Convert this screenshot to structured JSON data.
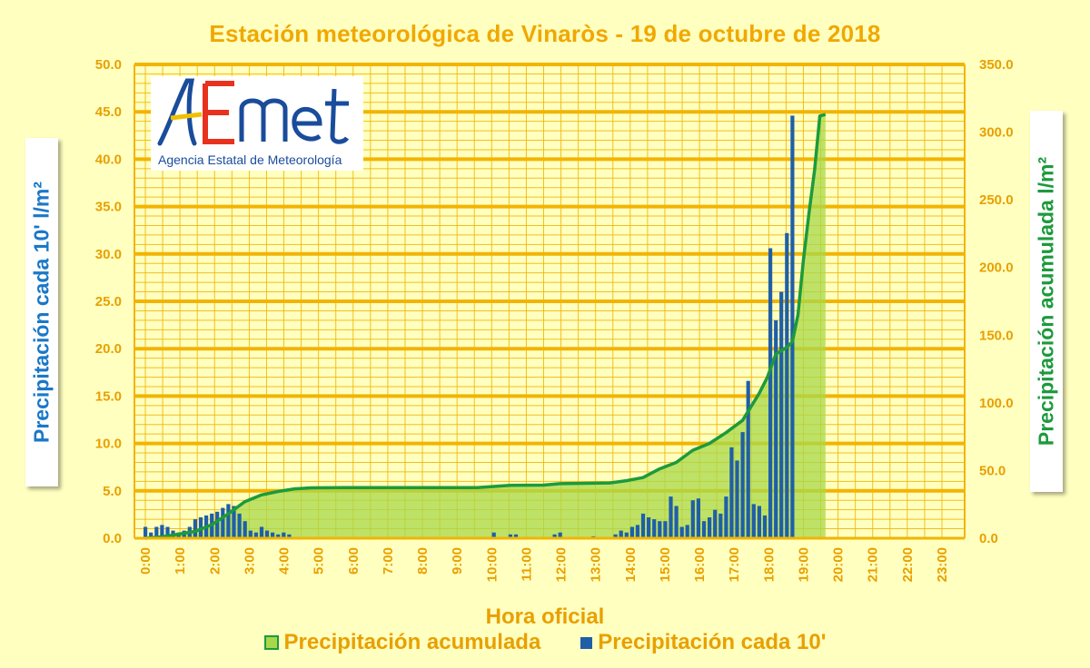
{
  "title": "Estación meteorológica de Vinaròs - 19 de octubre de 2018",
  "logo": {
    "text": "AEmet",
    "org": "Agencia Estatal de Meteorología"
  },
  "colors": {
    "background": "#ffffc0",
    "title": "#f0a800",
    "gridline": "#f2b400",
    "bar": "#1f5fa8",
    "area_fill": "#a8d84a",
    "line": "#1c9a3c",
    "left_label": "#1a78c8",
    "right_label": "#1c9a3c"
  },
  "legend": {
    "accum_label": "Precipitación acumulada",
    "bar_label": "Precipitación cada 10'"
  },
  "chart_data": {
    "type": "bar",
    "title": "Estación meteorológica de Vinaròs - 19 de octubre de 2018",
    "xlabel": "Hora oficial",
    "ylabel_left": "Precipitación cada 10' l/m²",
    "ylabel_right": "Precipitación acumulada l/m²",
    "x_range_hours": [
      0,
      24
    ],
    "ylim_left": [
      0,
      50
    ],
    "ylim_right": [
      0,
      350
    ],
    "left_ticks": [
      "0.0",
      "5.0",
      "10.0",
      "15.0",
      "20.0",
      "25.0",
      "30.0",
      "35.0",
      "40.0",
      "45.0",
      "50.0"
    ],
    "right_ticks": [
      "0.0",
      "50.0",
      "100.0",
      "150.0",
      "200.0",
      "250.0",
      "300.0",
      "350.0"
    ],
    "x_ticks": [
      "0:00",
      "1:00",
      "2:00",
      "3:00",
      "4:00",
      "5:00",
      "6:00",
      "7:00",
      "8:00",
      "9:00",
      "10:00",
      "11:00",
      "12:00",
      "13:00",
      "14:00",
      "15:00",
      "16:00",
      "17:00",
      "18:00",
      "19:00",
      "20:00",
      "21:00",
      "22:00",
      "23:00"
    ],
    "grid": true,
    "series": [
      {
        "name": "Precipitación cada 10'",
        "type": "bar",
        "axis": "left",
        "points": [
          [
            0.0,
            1.2
          ],
          [
            0.1667,
            0.6
          ],
          [
            0.3333,
            1.2
          ],
          [
            0.5,
            1.4
          ],
          [
            0.6667,
            1.2
          ],
          [
            0.8333,
            0.8
          ],
          [
            1.0,
            0.6
          ],
          [
            1.1667,
            0.8
          ],
          [
            1.3333,
            1.2
          ],
          [
            1.5,
            2.0
          ],
          [
            1.6667,
            2.2
          ],
          [
            1.8333,
            2.4
          ],
          [
            2.0,
            2.6
          ],
          [
            2.1667,
            2.8
          ],
          [
            2.3333,
            3.2
          ],
          [
            2.5,
            3.6
          ],
          [
            2.6667,
            3.4
          ],
          [
            2.8333,
            2.6
          ],
          [
            3.0,
            1.8
          ],
          [
            3.1667,
            0.8
          ],
          [
            3.3333,
            0.6
          ],
          [
            3.5,
            1.2
          ],
          [
            3.6667,
            0.8
          ],
          [
            3.8333,
            0.6
          ],
          [
            4.0,
            0.4
          ],
          [
            4.1667,
            0.6
          ],
          [
            4.3333,
            0.4
          ],
          [
            10.5,
            0.6
          ],
          [
            11.0,
            0.4
          ],
          [
            11.1667,
            0.4
          ],
          [
            12.3333,
            0.4
          ],
          [
            12.5,
            0.6
          ],
          [
            13.5,
            0.2
          ],
          [
            14.1667,
            0.4
          ],
          [
            14.3333,
            0.8
          ],
          [
            14.5,
            0.6
          ],
          [
            14.6667,
            1.2
          ],
          [
            14.8333,
            1.4
          ],
          [
            15.0,
            2.6
          ],
          [
            15.1667,
            2.2
          ],
          [
            15.3333,
            2.0
          ],
          [
            15.5,
            1.8
          ],
          [
            15.6667,
            1.8
          ],
          [
            15.8333,
            4.4
          ],
          [
            16.0,
            3.4
          ],
          [
            16.1667,
            1.2
          ],
          [
            16.3333,
            1.4
          ],
          [
            16.5,
            4.0
          ],
          [
            16.6667,
            4.2
          ],
          [
            16.8333,
            1.8
          ],
          [
            17.0,
            2.2
          ],
          [
            17.1667,
            3.0
          ],
          [
            17.3333,
            2.6
          ],
          [
            17.5,
            4.4
          ],
          [
            17.6667,
            9.6
          ],
          [
            17.8333,
            8.2
          ],
          [
            18.0,
            11.2
          ],
          [
            18.1667,
            16.6
          ],
          [
            18.3333,
            3.6
          ],
          [
            18.5,
            3.4
          ],
          [
            18.6667,
            2.4
          ],
          [
            18.8333,
            30.6
          ],
          [
            19.0,
            23.0
          ],
          [
            19.1667,
            26.0
          ],
          [
            19.3333,
            32.2
          ],
          [
            19.5,
            44.6
          ]
        ]
      },
      {
        "name": "Precipitación acumulada",
        "type": "area",
        "axis": "right",
        "points": [
          [
            0.0,
            0.0
          ],
          [
            0.5,
            1.0
          ],
          [
            1.0,
            3.0
          ],
          [
            1.5,
            5.0
          ],
          [
            2.0,
            10.0
          ],
          [
            2.5,
            18.0
          ],
          [
            3.0,
            27.0
          ],
          [
            3.5,
            32.0
          ],
          [
            4.0,
            34.5
          ],
          [
            4.5,
            36.5
          ],
          [
            5.0,
            37.2
          ],
          [
            6.0,
            37.4
          ],
          [
            7.0,
            37.4
          ],
          [
            8.0,
            37.4
          ],
          [
            9.0,
            37.4
          ],
          [
            10.0,
            37.4
          ],
          [
            10.5,
            38.2
          ],
          [
            11.0,
            39.0
          ],
          [
            12.0,
            39.2
          ],
          [
            12.5,
            40.3
          ],
          [
            13.0,
            40.5
          ],
          [
            14.0,
            40.8
          ],
          [
            14.5,
            42.5
          ],
          [
            15.0,
            44.8
          ],
          [
            15.5,
            51.2
          ],
          [
            16.0,
            56.0
          ],
          [
            16.5,
            65.0
          ],
          [
            17.0,
            70.0
          ],
          [
            17.5,
            78.0
          ],
          [
            18.0,
            87.0
          ],
          [
            18.5,
            107.0
          ],
          [
            18.75,
            119.0
          ],
          [
            19.0,
            136.0
          ],
          [
            19.33,
            141.0
          ],
          [
            19.5,
            145.0
          ],
          [
            19.67,
            165.0
          ],
          [
            19.83,
            205.0
          ],
          [
            20.0,
            240.0
          ],
          [
            20.17,
            272.0
          ],
          [
            20.33,
            312.0
          ],
          [
            20.5,
            313.0
          ]
        ]
      }
    ],
    "note": "x positions in hours; the x-axis grid uses 24 hourly columns and bars are placed proportionally"
  }
}
